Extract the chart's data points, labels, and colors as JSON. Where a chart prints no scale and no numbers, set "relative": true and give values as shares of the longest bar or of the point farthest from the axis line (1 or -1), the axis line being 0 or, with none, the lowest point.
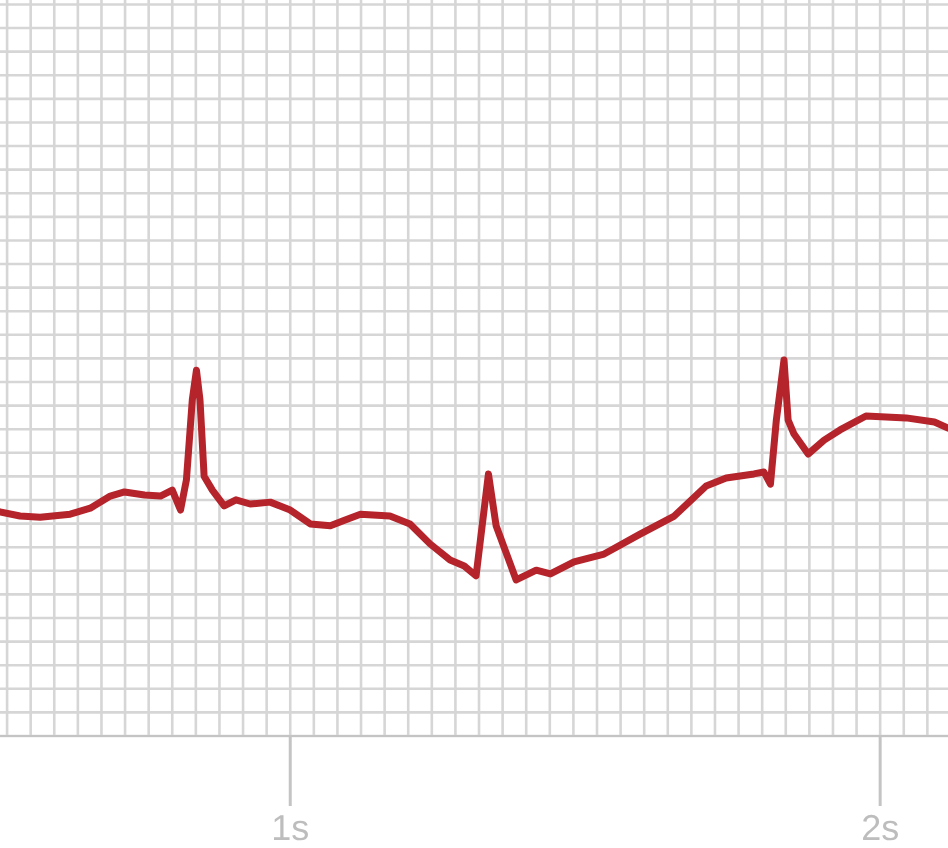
{
  "chart_data": {
    "type": "line",
    "relative": true,
    "grid": true,
    "marker": "none",
    "line_style": "solid",
    "tick_labels": "x",
    "xlim": [
      0.508,
      2.115
    ],
    "xticks": [
      {
        "value": 0.6,
        "label": null
      },
      {
        "value": 0.8,
        "label": null
      },
      {
        "value": 1,
        "label": "1s"
      },
      {
        "value": 1.2,
        "label": null
      },
      {
        "value": 1.4,
        "label": null
      },
      {
        "value": 1.6,
        "label": null
      },
      {
        "value": 1.8,
        "label": null
      },
      {
        "value": 2,
        "label": "2s"
      }
    ],
    "series": [
      {
        "color": "#b5232b",
        "x": [
          0.508,
          0.542,
          0.576,
          0.627,
          0.661,
          0.695,
          0.719,
          0.753,
          0.78,
          0.8,
          0.814,
          0.824,
          0.834,
          0.841,
          0.847,
          0.854,
          0.868,
          0.888,
          0.908,
          0.932,
          0.966,
          1.0,
          1.034,
          1.068,
          1.092,
          1.119,
          1.169,
          1.203,
          1.237,
          1.271,
          1.295,
          1.315,
          1.336,
          1.349,
          1.383,
          1.417,
          1.441,
          1.481,
          1.532,
          1.593,
          1.651,
          1.705,
          1.739,
          1.786,
          1.803,
          1.814,
          1.824,
          1.837,
          1.844,
          1.854,
          1.878,
          1.905,
          1.932,
          1.976,
          2.044,
          2.092,
          2.115
        ],
        "values": [
          0.596,
          0.585,
          0.582,
          0.59,
          0.606,
          0.638,
          0.649,
          0.641,
          0.638,
          0.654,
          0.601,
          0.681,
          0.894,
          0.973,
          0.894,
          0.691,
          0.654,
          0.612,
          0.628,
          0.617,
          0.622,
          0.601,
          0.564,
          0.559,
          0.574,
          0.59,
          0.585,
          0.564,
          0.511,
          0.468,
          0.452,
          0.426,
          0.697,
          0.559,
          0.415,
          0.441,
          0.431,
          0.463,
          0.484,
          0.537,
          0.585,
          0.665,
          0.686,
          0.697,
          0.702,
          0.67,
          0.84,
          1,
          0.84,
          0.803,
          0.75,
          0.787,
          0.814,
          0.851,
          0.846,
          0.835,
          0.819
        ]
      }
    ]
  }
}
